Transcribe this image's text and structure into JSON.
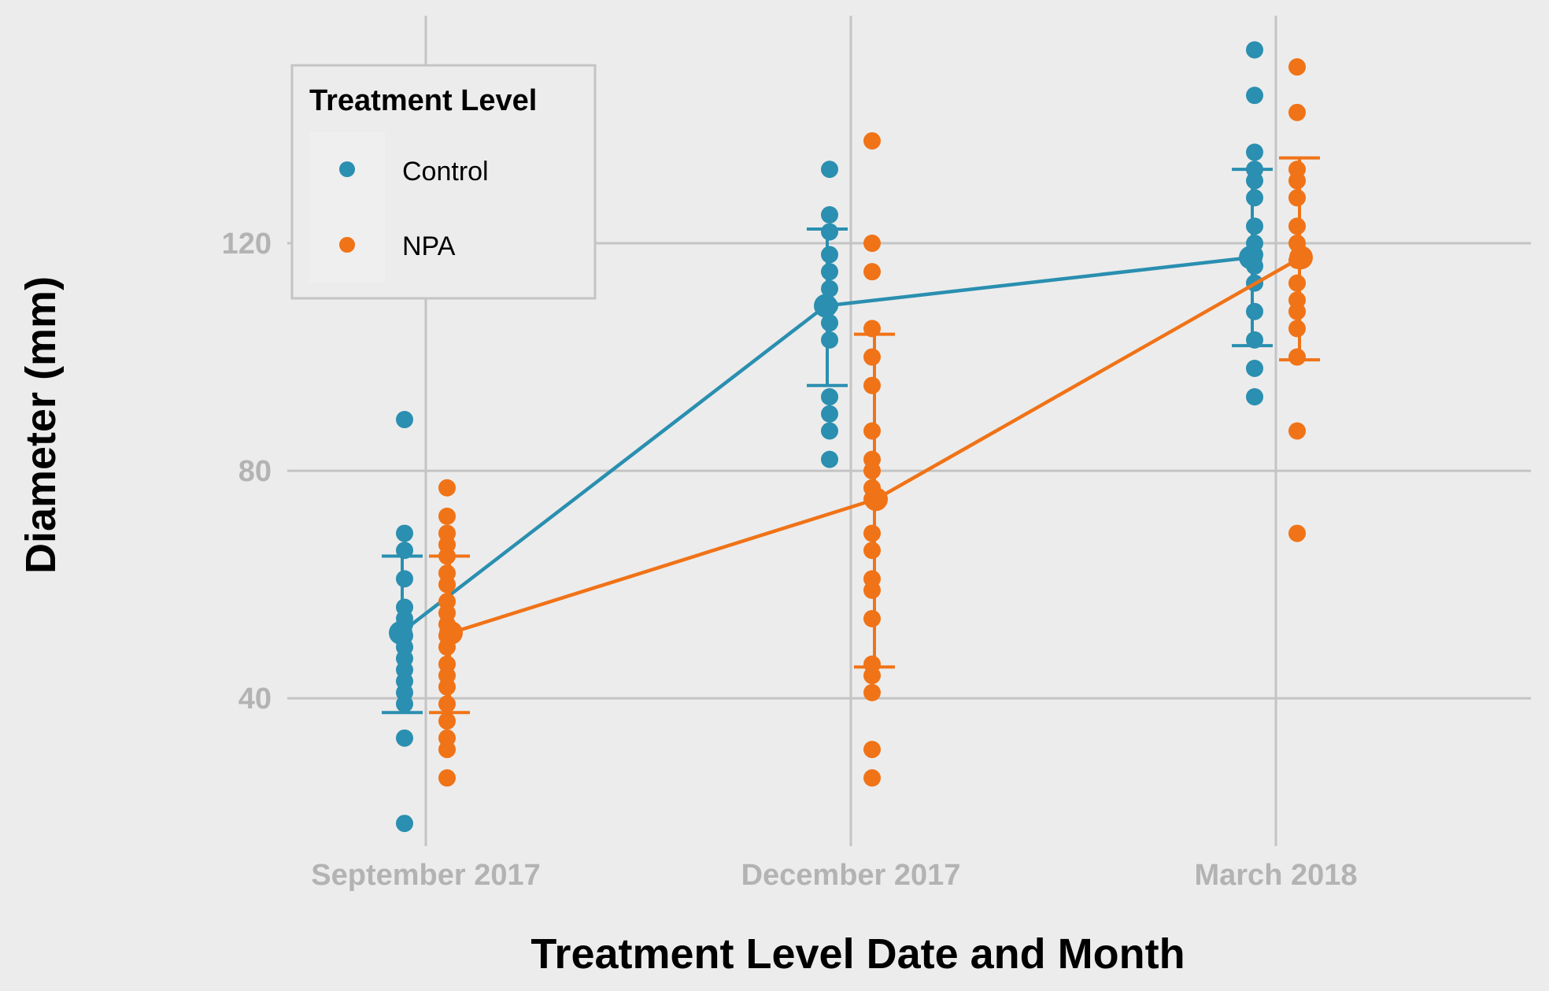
{
  "chart_data": {
    "type": "scatter",
    "xlabel": "Treatment Level Date and Month",
    "ylabel": "Diameter (mm)",
    "categories": [
      "September 2017",
      "December 2017",
      "March 2018"
    ],
    "ylim": [
      14,
      160
    ],
    "yticks": [
      40,
      80,
      120
    ],
    "grid": true,
    "legend": {
      "title": "Treatment Level",
      "position": "top-left"
    },
    "series": [
      {
        "name": "Control",
        "color": "#2a8fb0",
        "means": [
          51.5,
          109,
          117.5
        ],
        "error_low": [
          37.5,
          95,
          102
        ],
        "error_high": [
          65,
          122.5,
          133
        ],
        "points": [
          [
            18,
            33,
            39,
            41,
            43,
            45,
            47,
            49,
            51,
            53,
            54,
            56,
            61,
            66,
            69,
            89
          ],
          [
            82,
            87,
            90,
            93,
            103,
            106,
            109,
            112,
            115,
            118,
            122,
            125,
            133
          ],
          [
            93,
            98,
            103,
            108,
            113,
            116,
            118,
            120,
            123,
            128,
            131,
            133,
            136,
            146,
            154
          ]
        ]
      },
      {
        "name": "NPA",
        "color": "#f07317",
        "means": [
          51.5,
          75,
          117.5
        ],
        "error_low": [
          37.5,
          45.5,
          99.5
        ],
        "error_high": [
          65,
          104,
          135
        ],
        "points": [
          [
            26,
            31,
            33,
            36,
            39,
            42,
            44,
            46,
            49,
            51,
            53,
            55,
            57,
            60,
            62,
            65,
            67,
            69,
            72,
            77
          ],
          [
            26,
            31,
            41,
            44,
            46,
            54,
            59,
            61,
            66,
            69,
            75,
            77,
            80,
            82,
            87,
            95,
            100,
            105,
            115,
            120,
            138
          ],
          [
            69,
            87,
            100,
            105,
            108,
            110,
            113,
            117,
            120,
            123,
            128,
            131,
            133,
            143,
            151
          ]
        ]
      }
    ]
  }
}
